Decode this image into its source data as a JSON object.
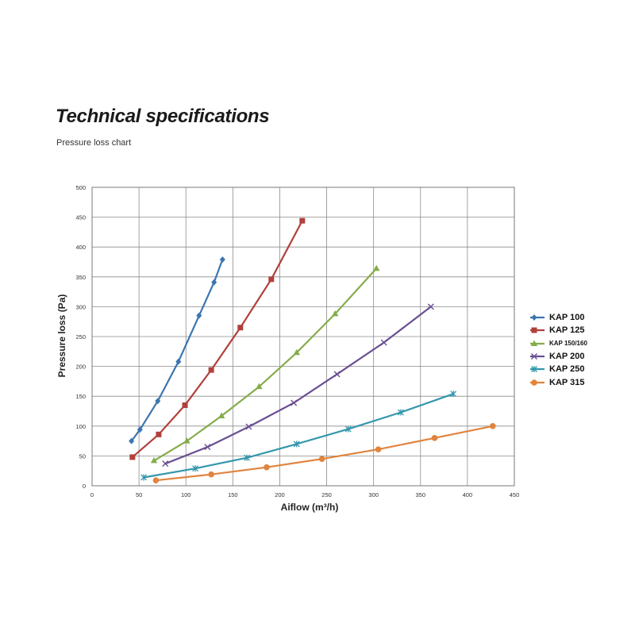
{
  "header": {
    "title": "Technical specifications",
    "subtitle": "Pressure loss chart"
  },
  "chart_data": {
    "type": "line",
    "title": "",
    "xlabel": "Aiflow (m³/h)",
    "ylabel": "Pressure loss (Pa)",
    "xlim": [
      0,
      450
    ],
    "ylim": [
      0,
      500
    ],
    "xticks": [
      0,
      50,
      100,
      150,
      200,
      250,
      300,
      350,
      400,
      450
    ],
    "yticks": [
      0,
      50,
      100,
      150,
      200,
      250,
      300,
      350,
      400,
      450,
      500
    ],
    "grid": true,
    "legend_position": "right",
    "series": [
      {
        "name": "KAP 100",
        "color": "#3b76af",
        "marker": "diamond",
        "points": [
          [
            42,
            75
          ],
          [
            51,
            94
          ],
          [
            70,
            142
          ],
          [
            92,
            208
          ],
          [
            114,
            285
          ],
          [
            130,
            341
          ],
          [
            139,
            379
          ]
        ]
      },
      {
        "name": "KAP 125",
        "color": "#b0403c",
        "marker": "square",
        "points": [
          [
            43,
            48
          ],
          [
            71,
            86
          ],
          [
            99,
            135
          ],
          [
            127,
            194
          ],
          [
            158,
            265
          ],
          [
            191,
            346
          ],
          [
            224,
            444
          ]
        ]
      },
      {
        "name": "KAP 150/160",
        "color": "#86ac4b",
        "marker": "triangle",
        "points": [
          [
            66,
            42
          ],
          [
            101,
            75
          ],
          [
            138,
            117
          ],
          [
            178,
            166
          ],
          [
            218,
            223
          ],
          [
            259,
            288
          ],
          [
            303,
            364
          ]
        ]
      },
      {
        "name": "KAP 200",
        "color": "#6a4f93",
        "marker": "x",
        "points": [
          [
            78,
            37
          ],
          [
            123,
            65
          ],
          [
            167,
            99
          ],
          [
            215,
            139
          ],
          [
            261,
            187
          ],
          [
            311,
            240
          ],
          [
            361,
            300
          ]
        ]
      },
      {
        "name": "KAP 250",
        "color": "#3497ac",
        "marker": "star",
        "points": [
          [
            55,
            14
          ],
          [
            110,
            29
          ],
          [
            165,
            47
          ],
          [
            218,
            70
          ],
          [
            273,
            95
          ],
          [
            329,
            123
          ],
          [
            385,
            154
          ]
        ]
      },
      {
        "name": "KAP 315",
        "color": "#e0843e",
        "marker": "circle",
        "points": [
          [
            68,
            9
          ],
          [
            127,
            19
          ],
          [
            186,
            31
          ],
          [
            245,
            45
          ],
          [
            305,
            61
          ],
          [
            365,
            80
          ],
          [
            427,
            100
          ]
        ]
      }
    ]
  }
}
